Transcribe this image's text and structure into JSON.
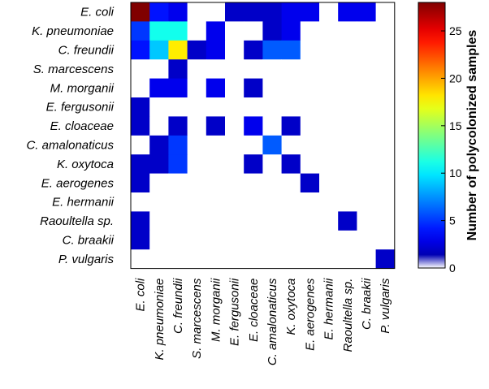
{
  "chart_data": {
    "type": "heatmap",
    "title": "",
    "xlabel": "",
    "ylabel": "",
    "rows": [
      "E. coli",
      "K. pneumoniae",
      "C. freundii",
      "S. marcescens",
      "M. morganii",
      "E. fergusonii",
      "E. cloaceae",
      "C. amalonaticus",
      "K. oxytoca",
      "E. aerogenes",
      "E. hermanii",
      "Raoultella sp.",
      "C. braakii",
      "P. vulgaris"
    ],
    "columns": [
      "E. coli",
      "K. pneumoniae",
      "C. freundii",
      "S. marcescens",
      "M. morganii",
      "E. fergusonii",
      "E. cloaceae",
      "C. amalonaticus",
      "K. oxytoca",
      "E. aerogenes",
      "E. hermanii",
      "Raoultella sp.",
      "C. braakii",
      "P. vulgaris"
    ],
    "values": [
      [
        28,
        4,
        3,
        0,
        0,
        2,
        2,
        2,
        3,
        3,
        0,
        3,
        3,
        0
      ],
      [
        5,
        11,
        11,
        0,
        3,
        0,
        0,
        2,
        3,
        0,
        0,
        0,
        0,
        0
      ],
      [
        4,
        9,
        18,
        2,
        3,
        0,
        2,
        6,
        6,
        0,
        0,
        0,
        0,
        0
      ],
      [
        0,
        0,
        2,
        0,
        0,
        0,
        0,
        0,
        0,
        0,
        0,
        0,
        0,
        0
      ],
      [
        0,
        3,
        3,
        0,
        3,
        0,
        2,
        0,
        0,
        0,
        0,
        0,
        0,
        0
      ],
      [
        2,
        0,
        0,
        0,
        0,
        0,
        0,
        0,
        0,
        0,
        0,
        0,
        0,
        0
      ],
      [
        2,
        0,
        2,
        0,
        2,
        0,
        3,
        0,
        2,
        0,
        0,
        0,
        0,
        0
      ],
      [
        0,
        2,
        5,
        0,
        0,
        0,
        0,
        6,
        0,
        0,
        0,
        0,
        0,
        0
      ],
      [
        2,
        2,
        5,
        0,
        0,
        0,
        2,
        0,
        2,
        0,
        0,
        0,
        0,
        0
      ],
      [
        2,
        0,
        0,
        0,
        0,
        0,
        0,
        0,
        0,
        2,
        0,
        0,
        0,
        0
      ],
      [
        0,
        0,
        0,
        0,
        0,
        0,
        0,
        0,
        0,
        0,
        0,
        0,
        0,
        0
      ],
      [
        2,
        0,
        0,
        0,
        0,
        0,
        0,
        0,
        0,
        0,
        0,
        2,
        0,
        0
      ],
      [
        2,
        0,
        0,
        0,
        0,
        0,
        0,
        0,
        0,
        0,
        0,
        0,
        0,
        0
      ],
      [
        0,
        0,
        0,
        0,
        0,
        0,
        0,
        0,
        0,
        0,
        0,
        0,
        0,
        2
      ]
    ],
    "colorbar": {
      "label": "Number of polycolonized samples",
      "range": [
        0,
        28
      ],
      "ticks": [
        0,
        5,
        10,
        15,
        20,
        25
      ],
      "zero_color": "#ffffff",
      "colormap": "jet"
    },
    "grid": false
  }
}
